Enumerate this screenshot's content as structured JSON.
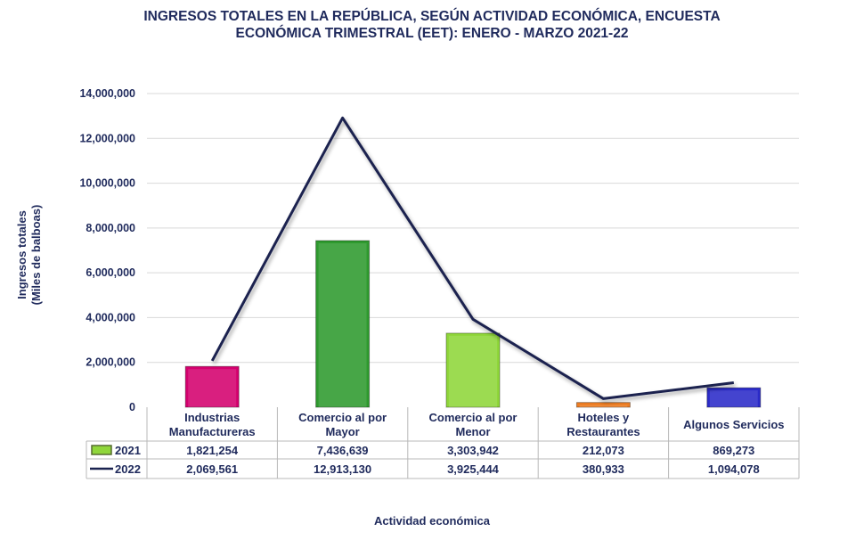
{
  "chart_data": {
    "type": "bar",
    "title_lines": [
      "INGRESOS TOTALES EN LA REPÚBLICA, SEGÚN ACTIVIDAD ECONÓMICA, ENCUESTA",
      "ECONÓMICA TRIMESTRAL (EET): ENERO - MARZO 2021-22"
    ],
    "ylabel_lines": [
      "Ingresos totales",
      "(Miles de balboas)"
    ],
    "xlabel": "Actividad económica",
    "ylim": [
      0,
      14000000
    ],
    "yticks": [
      "0",
      "2,000,000",
      "4,000,000",
      "6,000,000",
      "8,000,000",
      "10,000,000",
      "12,000,000",
      "14,000,000"
    ],
    "ytick_values": [
      0,
      2000000,
      4000000,
      6000000,
      8000000,
      10000000,
      12000000,
      14000000
    ],
    "categories": [
      [
        "Industrias",
        "Manufactureras"
      ],
      [
        "Comercio al por",
        "Mayor"
      ],
      [
        "Comercio al por",
        "Menor"
      ],
      [
        "Hoteles y",
        "Restaurantes"
      ],
      [
        "Algunos Servicios"
      ]
    ],
    "bar_colors": [
      "#d4006e",
      "#2e9a2e",
      "#8fd63a",
      "#ee7d22",
      "#2b2bc9"
    ],
    "line_color": "#1a2350",
    "series": [
      {
        "name": "2021",
        "type": "bar",
        "values": [
          1821254,
          7436639,
          3303942,
          212073,
          869273
        ],
        "labels": [
          "1,821,254",
          "7,436,639",
          "3,303,942",
          "212,073",
          "869,273"
        ]
      },
      {
        "name": "2022",
        "type": "line",
        "values": [
          2069561,
          12913130,
          3925444,
          380933,
          1094078
        ],
        "labels": [
          "2,069,561",
          "12,913,130",
          "3,925,444",
          "380,933",
          "1,094,078"
        ]
      }
    ],
    "grid": true,
    "legend": "data-table"
  }
}
